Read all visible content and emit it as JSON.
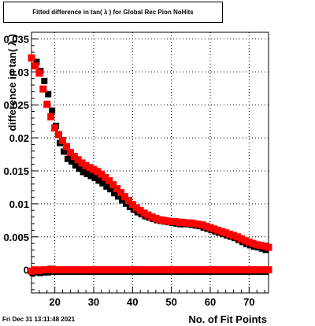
{
  "title": "Fitted difference in tan( λ ) for Global Rec Pion NoHits",
  "timestamp": "Fri Dec 31 13:11:48 2021",
  "colors": {
    "series_fit": "#ff0000",
    "series_ref": "#000000",
    "grid": "#000000"
  },
  "chart_data": {
    "type": "scatter",
    "title": "Fitted difference in tan( λ ) for Global Rec Pion NoHits",
    "xlabel": "No. of Fit Points",
    "ylabel": "difference in tan( λ )",
    "xlim": [
      14,
      75
    ],
    "ylim": [
      -0.0035,
      0.036
    ],
    "grid": true,
    "x_ticks": [
      "20",
      "30",
      "40",
      "50",
      "60",
      "70"
    ],
    "y_ticks": [
      "0",
      "0.005",
      "0.01",
      "0.015",
      "0.02",
      "0.025",
      "0.03",
      "0.035"
    ],
    "x_tick_values": [
      20,
      30,
      40,
      50,
      60,
      70
    ],
    "y_tick_values": [
      0,
      0.005,
      0.01,
      0.015,
      0.02,
      0.025,
      0.03,
      0.035
    ],
    "series": [
      {
        "color": "#000000",
        "points": [
          [
            15,
            0.0317
          ],
          [
            16,
            0.0303
          ],
          [
            17,
            0.0288
          ],
          [
            18,
            0.0268
          ],
          [
            19,
            0.0243
          ],
          [
            20,
            0.022
          ],
          [
            21,
            0.0194
          ],
          [
            22,
            0.0181
          ],
          [
            23,
            0.017
          ],
          [
            24,
            0.0166
          ],
          [
            25,
            0.016
          ],
          [
            26,
            0.0155
          ],
          [
            27,
            0.015
          ],
          [
            28,
            0.0147
          ],
          [
            29,
            0.0144
          ],
          [
            30,
            0.0141
          ],
          [
            31,
            0.0137
          ],
          [
            32,
            0.0133
          ],
          [
            33,
            0.0128
          ],
          [
            34,
            0.0124
          ],
          [
            35,
            0.0118
          ],
          [
            36,
            0.0113
          ],
          [
            37,
            0.0107
          ],
          [
            38,
            0.0102
          ],
          [
            39,
            0.0097
          ],
          [
            40,
            0.0093
          ],
          [
            41,
            0.0089
          ],
          [
            42,
            0.0086
          ],
          [
            43,
            0.0083
          ],
          [
            44,
            0.0081
          ],
          [
            45,
            0.0079
          ],
          [
            46,
            0.0077
          ],
          [
            47,
            0.0076
          ],
          [
            48,
            0.0075
          ],
          [
            49,
            0.0074
          ],
          [
            50,
            0.0073
          ],
          [
            51,
            0.0072
          ],
          [
            52,
            0.0071
          ],
          [
            53,
            0.0071
          ],
          [
            54,
            0.0071
          ],
          [
            55,
            0.007
          ],
          [
            56,
            0.0069
          ],
          [
            57,
            0.0068
          ],
          [
            58,
            0.0066
          ],
          [
            59,
            0.0064
          ],
          [
            60,
            0.0062
          ],
          [
            61,
            0.006
          ],
          [
            62,
            0.0058
          ],
          [
            63,
            0.0056
          ],
          [
            64,
            0.0054
          ],
          [
            65,
            0.0052
          ],
          [
            66,
            0.005
          ],
          [
            67,
            0.0047
          ],
          [
            68,
            0.0044
          ],
          [
            69,
            0.0041
          ],
          [
            70,
            0.0039
          ],
          [
            71,
            0.0037
          ],
          [
            72,
            0.0036
          ],
          [
            73,
            0.0034
          ],
          [
            74,
            0.0032
          ]
        ]
      },
      {
        "color": "#ff0000",
        "points": [
          [
            14,
            0.0321
          ],
          [
            15,
            0.0309
          ],
          [
            16,
            0.0298
          ],
          [
            17,
            0.0274
          ],
          [
            18,
            0.0251
          ],
          [
            19,
            0.0232
          ],
          [
            20,
            0.0215
          ],
          [
            21,
            0.0205
          ],
          [
            22,
            0.0196
          ],
          [
            23,
            0.0187
          ],
          [
            24,
            0.0178
          ],
          [
            25,
            0.0172
          ],
          [
            26,
            0.0167
          ],
          [
            27,
            0.0162
          ],
          [
            28,
            0.0158
          ],
          [
            29,
            0.0155
          ],
          [
            30,
            0.0152
          ],
          [
            31,
            0.0149
          ],
          [
            32,
            0.0145
          ],
          [
            33,
            0.014
          ],
          [
            34,
            0.0135
          ],
          [
            35,
            0.0129
          ],
          [
            36,
            0.0123
          ],
          [
            37,
            0.0117
          ],
          [
            38,
            0.0111
          ],
          [
            39,
            0.0105
          ],
          [
            40,
            0.0099
          ],
          [
            41,
            0.0094
          ],
          [
            42,
            0.009
          ],
          [
            43,
            0.0086
          ],
          [
            44,
            0.0083
          ],
          [
            45,
            0.008
          ],
          [
            46,
            0.0078
          ],
          [
            47,
            0.0076
          ],
          [
            48,
            0.0075
          ],
          [
            49,
            0.0074
          ],
          [
            50,
            0.0073
          ],
          [
            51,
            0.0073
          ],
          [
            52,
            0.0072
          ],
          [
            53,
            0.0072
          ],
          [
            54,
            0.0071
          ],
          [
            55,
            0.0071
          ],
          [
            56,
            0.007
          ],
          [
            57,
            0.0069
          ],
          [
            58,
            0.0068
          ],
          [
            59,
            0.0066
          ],
          [
            60,
            0.0064
          ],
          [
            61,
            0.0062
          ],
          [
            62,
            0.006
          ],
          [
            63,
            0.0058
          ],
          [
            64,
            0.0056
          ],
          [
            65,
            0.0054
          ],
          [
            66,
            0.0052
          ],
          [
            67,
            0.005
          ],
          [
            68,
            0.0047
          ],
          [
            69,
            0.0044
          ],
          [
            70,
            0.0042
          ],
          [
            71,
            0.004
          ],
          [
            72,
            0.0038
          ],
          [
            73,
            0.0037
          ],
          [
            74,
            0.0036
          ],
          [
            75,
            0.0034
          ]
        ]
      },
      {
        "color": "#000000",
        "points": [
          [
            14,
            -0.0003
          ],
          [
            15,
            -0.0002
          ],
          [
            16,
            -0.0003
          ],
          [
            17,
            -0.0002
          ],
          [
            18,
            -0.0002
          ],
          [
            19,
            -0.0001
          ],
          [
            20,
            -0.0001
          ],
          [
            21,
            -0.0001
          ],
          [
            22,
            -0.0001
          ],
          [
            23,
            -0.0001
          ],
          [
            24,
            -0.0001
          ],
          [
            25,
            -0.0001
          ],
          [
            26,
            -0.0001
          ],
          [
            27,
            -0.0001
          ],
          [
            28,
            -0.0001
          ],
          [
            29,
            -0.0001
          ],
          [
            30,
            -0.0001
          ],
          [
            31,
            -0.0001
          ],
          [
            32,
            -0.0001
          ],
          [
            33,
            -0.0001
          ],
          [
            34,
            -0.0001
          ],
          [
            35,
            -0.0001
          ],
          [
            36,
            -0.0001
          ],
          [
            37,
            -0.0001
          ],
          [
            38,
            -0.0001
          ],
          [
            39,
            -0.0001
          ],
          [
            40,
            -0.0001
          ],
          [
            41,
            -0.0001
          ],
          [
            42,
            -0.0001
          ],
          [
            43,
            -0.0001
          ],
          [
            44,
            -0.0001
          ],
          [
            45,
            -0.0001
          ],
          [
            46,
            -0.0001
          ],
          [
            47,
            -0.0001
          ],
          [
            48,
            -0.0001
          ],
          [
            49,
            -0.0001
          ],
          [
            50,
            -0.0001
          ],
          [
            51,
            -0.0001
          ],
          [
            52,
            -0.0001
          ],
          [
            53,
            -0.0001
          ],
          [
            54,
            -0.0001
          ],
          [
            55,
            -0.0001
          ],
          [
            56,
            -0.0001
          ],
          [
            57,
            -0.0001
          ],
          [
            58,
            -0.0001
          ],
          [
            59,
            -0.0001
          ],
          [
            60,
            -0.0001
          ],
          [
            61,
            -0.0001
          ],
          [
            62,
            -0.0001
          ],
          [
            63,
            -0.0001
          ],
          [
            64,
            -0.0001
          ],
          [
            65,
            -0.0001
          ],
          [
            66,
            -0.0001
          ],
          [
            67,
            -0.0001
          ],
          [
            68,
            -0.0001
          ],
          [
            69,
            -0.0001
          ],
          [
            70,
            -0.0001
          ],
          [
            71,
            -0.0001
          ],
          [
            72,
            -0.0001
          ],
          [
            73,
            -0.0001
          ],
          [
            74,
            -0.0001
          ]
        ]
      },
      {
        "color": "#ff0000",
        "points": [
          [
            14,
            -0.0002
          ],
          [
            15,
            0.0
          ],
          [
            16,
            -0.0001
          ],
          [
            17,
            0.0
          ],
          [
            18,
            0.0
          ],
          [
            19,
            0.0001
          ],
          [
            20,
            0.0
          ],
          [
            21,
            0.0
          ],
          [
            22,
            0.0
          ],
          [
            23,
            0.0
          ],
          [
            24,
            0.0
          ],
          [
            25,
            0.0
          ],
          [
            26,
            0.0
          ],
          [
            27,
            0.0
          ],
          [
            28,
            0.0
          ],
          [
            29,
            0.0
          ],
          [
            30,
            0.0
          ],
          [
            31,
            0.0
          ],
          [
            32,
            0.0
          ],
          [
            33,
            0.0
          ],
          [
            34,
            0.0
          ],
          [
            35,
            0.0
          ],
          [
            36,
            0.0
          ],
          [
            37,
            0.0
          ],
          [
            38,
            0.0
          ],
          [
            39,
            0.0
          ],
          [
            40,
            0.0
          ],
          [
            41,
            0.0
          ],
          [
            42,
            0.0
          ],
          [
            43,
            0.0
          ],
          [
            44,
            0.0
          ],
          [
            45,
            0.0
          ],
          [
            46,
            0.0
          ],
          [
            47,
            0.0
          ],
          [
            48,
            0.0
          ],
          [
            49,
            0.0
          ],
          [
            50,
            0.0
          ],
          [
            51,
            0.0
          ],
          [
            52,
            0.0
          ],
          [
            53,
            0.0
          ],
          [
            54,
            0.0
          ],
          [
            55,
            0.0
          ],
          [
            56,
            0.0
          ],
          [
            57,
            0.0
          ],
          [
            58,
            0.0
          ],
          [
            59,
            0.0
          ],
          [
            60,
            0.0
          ],
          [
            61,
            0.0
          ],
          [
            62,
            0.0
          ],
          [
            63,
            0.0
          ],
          [
            64,
            0.0
          ],
          [
            65,
            0.0
          ],
          [
            66,
            0.0
          ],
          [
            67,
            0.0
          ],
          [
            68,
            0.0
          ],
          [
            69,
            0.0
          ],
          [
            70,
            0.0
          ],
          [
            71,
            0.0
          ],
          [
            72,
            0.0
          ],
          [
            73,
            0.0
          ],
          [
            74,
            0.0
          ],
          [
            75,
            0.0
          ]
        ]
      }
    ]
  }
}
